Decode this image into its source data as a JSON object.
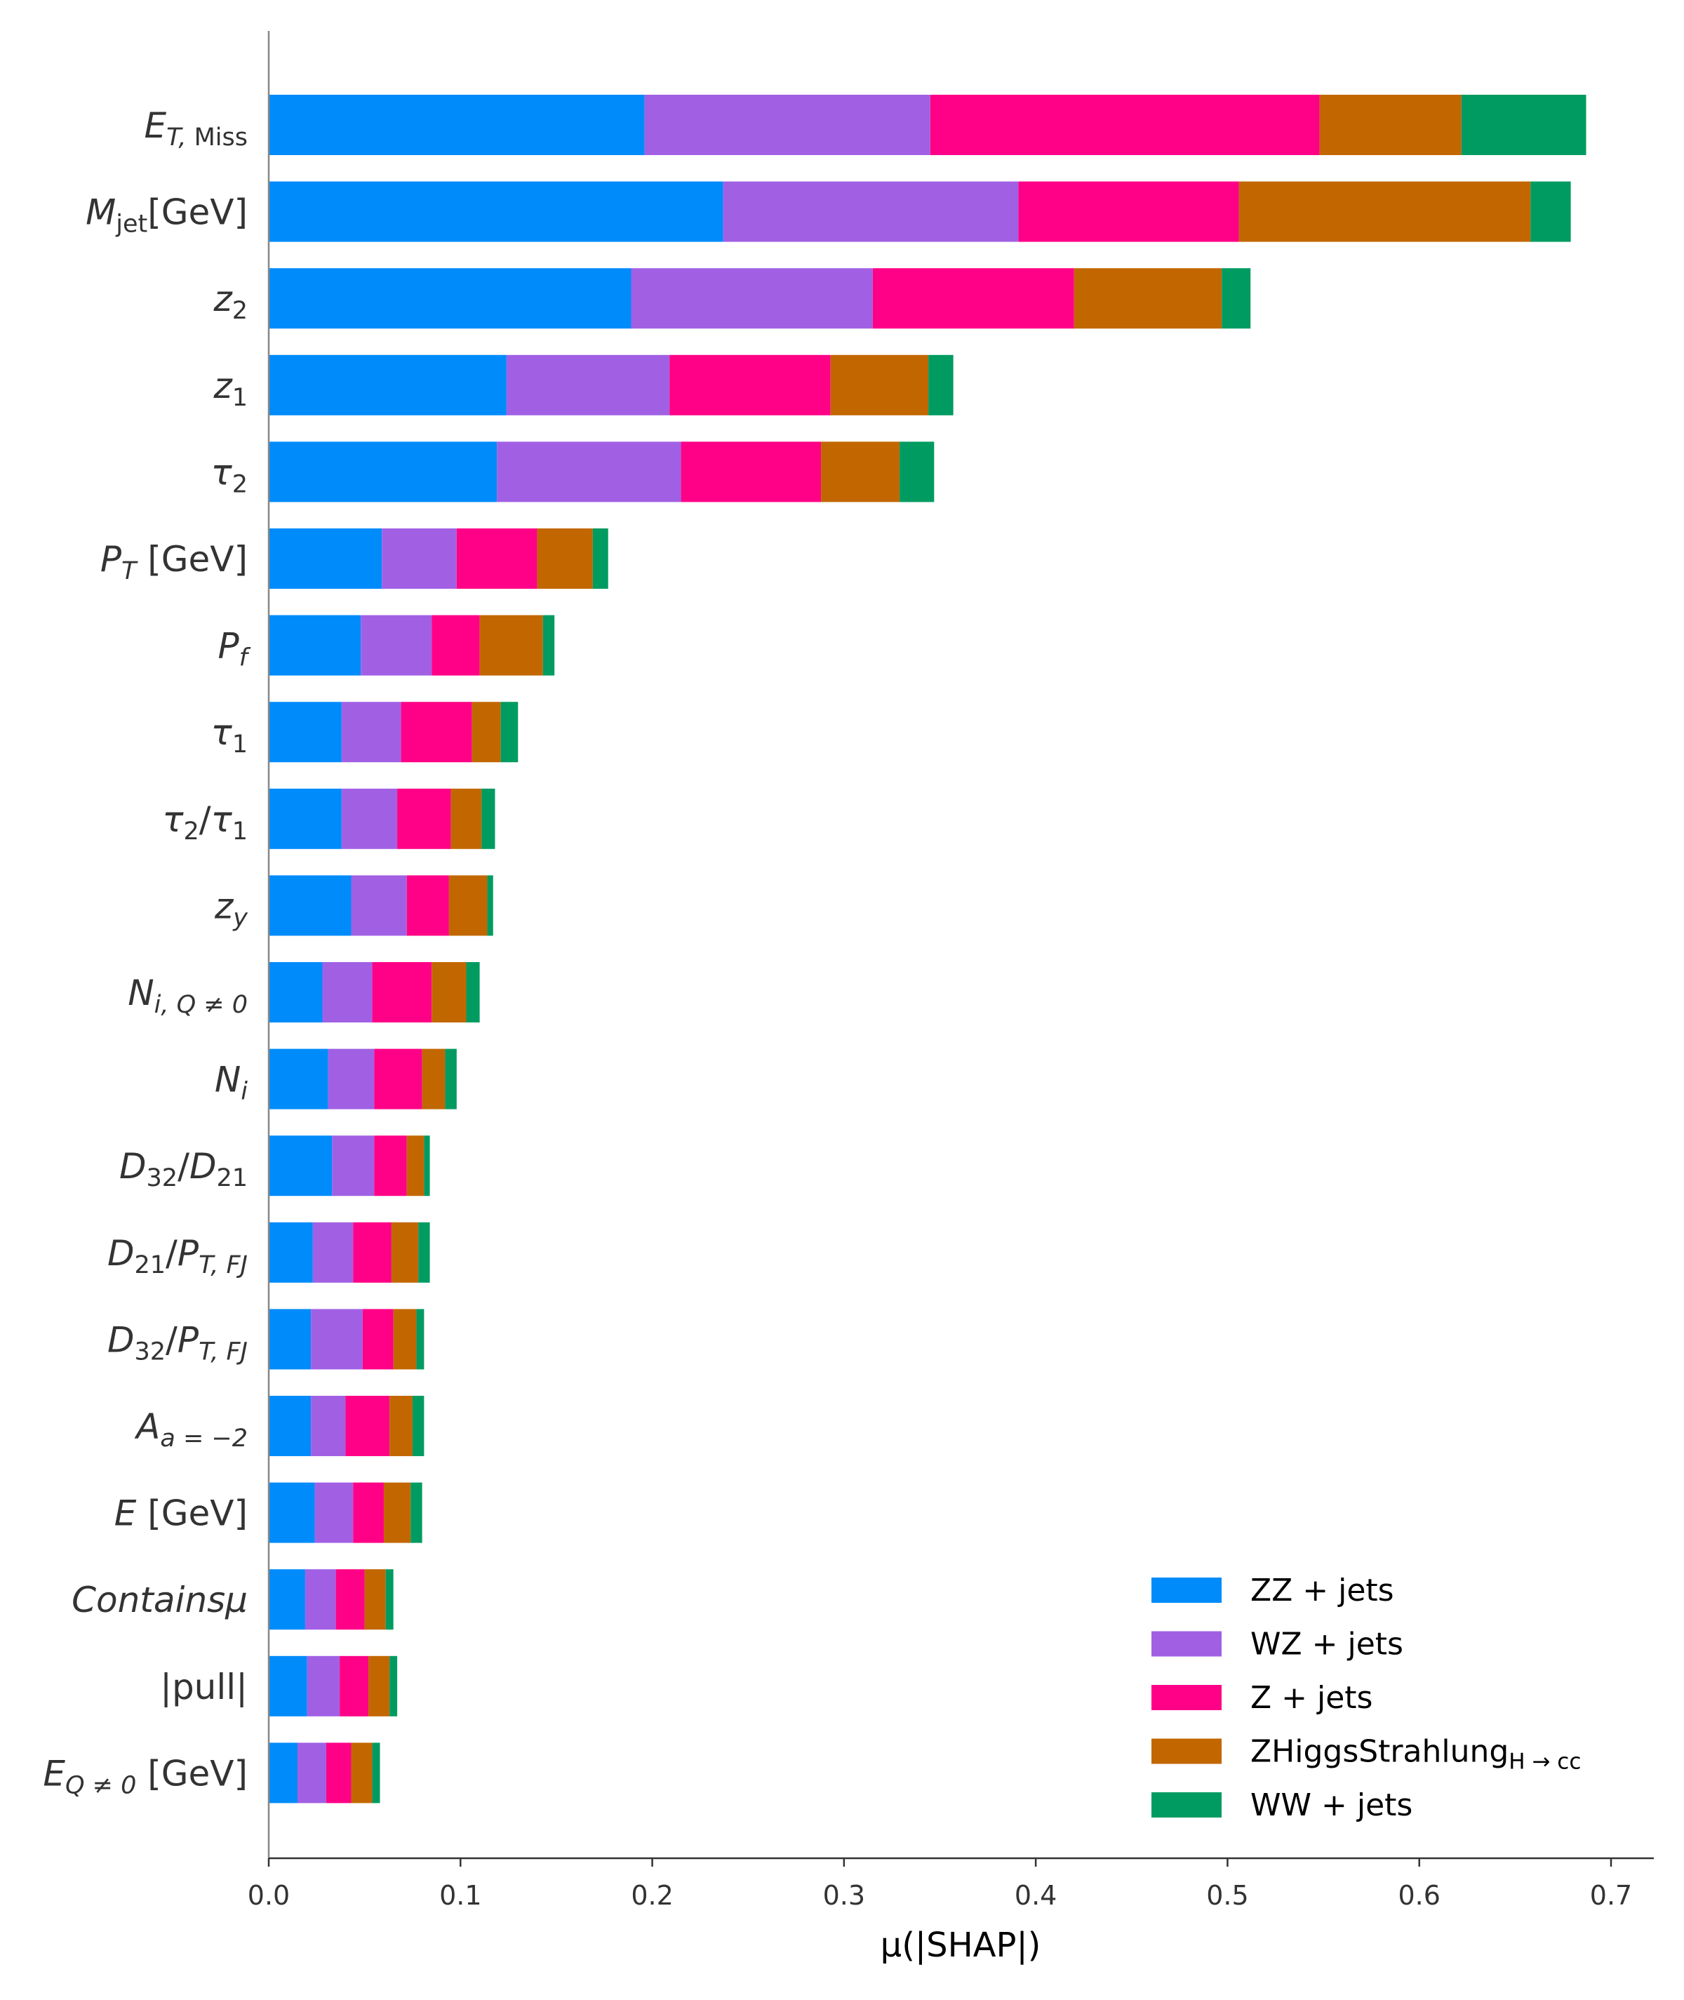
{
  "chart_data": {
    "type": "bar",
    "orientation": "horizontal",
    "stacked": true,
    "xlabel": "μ(|SHAP|)",
    "xlim": [
      0,
      0.72
    ],
    "xticks": [
      "0.0",
      "0.1",
      "0.2",
      "0.3",
      "0.4",
      "0.5",
      "0.6",
      "0.7"
    ],
    "legend_position": "lower-right",
    "grid": false,
    "categories": [
      {
        "key": "et_miss",
        "segments": [
          {
            "t": "E",
            "it": true
          },
          {
            "t": "T, ",
            "it": true,
            "sub": true
          },
          {
            "t": "Miss",
            "sub": true
          }
        ]
      },
      {
        "key": "m_jet",
        "segments": [
          {
            "t": "M",
            "it": true
          },
          {
            "t": "jet",
            "sub": true
          },
          {
            "t": "[GeV]"
          }
        ]
      },
      {
        "key": "z2",
        "segments": [
          {
            "t": "z",
            "it": true
          },
          {
            "t": "2",
            "sub": true
          }
        ]
      },
      {
        "key": "z1",
        "segments": [
          {
            "t": "z",
            "it": true
          },
          {
            "t": "1",
            "sub": true
          }
        ]
      },
      {
        "key": "tau2",
        "segments": [
          {
            "t": "τ",
            "it": true
          },
          {
            "t": "2",
            "sub": true
          }
        ]
      },
      {
        "key": "pt",
        "segments": [
          {
            "t": "P",
            "it": true
          },
          {
            "t": "T",
            "it": true,
            "sub": true
          },
          {
            "t": " [GeV]"
          }
        ]
      },
      {
        "key": "pf",
        "segments": [
          {
            "t": "P",
            "it": true
          },
          {
            "t": "f",
            "it": true,
            "sub": true
          }
        ]
      },
      {
        "key": "tau1",
        "segments": [
          {
            "t": "τ",
            "it": true
          },
          {
            "t": "1",
            "sub": true
          }
        ]
      },
      {
        "key": "tau21",
        "segments": [
          {
            "t": "τ",
            "it": true
          },
          {
            "t": "2",
            "sub": true
          },
          {
            "t": "/"
          },
          {
            "t": "τ",
            "it": true
          },
          {
            "t": "1",
            "sub": true
          }
        ]
      },
      {
        "key": "zy",
        "segments": [
          {
            "t": "z",
            "it": true
          },
          {
            "t": "y",
            "it": true,
            "sub": true
          }
        ]
      },
      {
        "key": "n_iq",
        "segments": [
          {
            "t": "N",
            "it": true
          },
          {
            "t": "i, Q ≠ 0",
            "it": true,
            "sub": true
          }
        ]
      },
      {
        "key": "n_i",
        "segments": [
          {
            "t": "N",
            "it": true
          },
          {
            "t": "i",
            "it": true,
            "sub": true
          }
        ]
      },
      {
        "key": "d32_d21",
        "segments": [
          {
            "t": "D",
            "it": true
          },
          {
            "t": "32",
            "sub": true
          },
          {
            "t": "/"
          },
          {
            "t": "D",
            "it": true
          },
          {
            "t": "21",
            "sub": true
          }
        ]
      },
      {
        "key": "d21_ptfj",
        "segments": [
          {
            "t": "D",
            "it": true
          },
          {
            "t": "21",
            "sub": true
          },
          {
            "t": "/"
          },
          {
            "t": "P",
            "it": true
          },
          {
            "t": "T, FJ",
            "it": true,
            "sub": true
          }
        ]
      },
      {
        "key": "d32_ptfj",
        "segments": [
          {
            "t": "D",
            "it": true
          },
          {
            "t": "32",
            "sub": true
          },
          {
            "t": "/"
          },
          {
            "t": "P",
            "it": true
          },
          {
            "t": "T, FJ",
            "it": true,
            "sub": true
          }
        ]
      },
      {
        "key": "a_m2",
        "segments": [
          {
            "t": "A",
            "it": true
          },
          {
            "t": "a = −2",
            "it": true,
            "sub": true
          }
        ]
      },
      {
        "key": "e",
        "segments": [
          {
            "t": "E",
            "it": true
          },
          {
            "t": " [GeV]"
          }
        ]
      },
      {
        "key": "contains_mu",
        "segments": [
          {
            "t": "Containsμ",
            "it": true
          }
        ]
      },
      {
        "key": "pull",
        "segments": [
          {
            "t": "|pull|"
          }
        ]
      },
      {
        "key": "e_q",
        "segments": [
          {
            "t": "E",
            "it": true
          },
          {
            "t": "Q ≠ 0",
            "it": true,
            "sub": true
          },
          {
            "t": " [GeV]"
          }
        ]
      }
    ],
    "series": [
      {
        "name": "ZZ + jets",
        "color": "#008bfb",
        "values": [
          0.196,
          0.237,
          0.189,
          0.124,
          0.119,
          0.059,
          0.048,
          0.038,
          0.038,
          0.043,
          0.028,
          0.031,
          0.033,
          0.023,
          0.022,
          0.022,
          0.024,
          0.019,
          0.02,
          0.015
        ]
      },
      {
        "name": "WZ + jets",
        "color": "#a160e4",
        "values": [
          0.149,
          0.154,
          0.126,
          0.085,
          0.096,
          0.039,
          0.037,
          0.031,
          0.029,
          0.029,
          0.026,
          0.024,
          0.022,
          0.021,
          0.027,
          0.018,
          0.02,
          0.016,
          0.017,
          0.015
        ]
      },
      {
        "name": "Z + jets",
        "color": "#ff0187",
        "values": [
          0.203,
          0.115,
          0.105,
          0.084,
          0.073,
          0.042,
          0.025,
          0.037,
          0.028,
          0.022,
          0.031,
          0.025,
          0.017,
          0.02,
          0.016,
          0.023,
          0.016,
          0.015,
          0.015,
          0.013
        ]
      },
      {
        "name": "ZHiggsStrahlung",
        "name_sub": "H → cc",
        "color": "#c26700",
        "values": [
          0.074,
          0.152,
          0.077,
          0.051,
          0.041,
          0.029,
          0.033,
          0.015,
          0.016,
          0.02,
          0.018,
          0.012,
          0.009,
          0.014,
          0.012,
          0.012,
          0.014,
          0.011,
          0.011,
          0.011
        ]
      },
      {
        "name": "WW + jets",
        "color": "#009b61",
        "values": [
          0.065,
          0.021,
          0.015,
          0.013,
          0.018,
          0.008,
          0.006,
          0.009,
          0.007,
          0.003,
          0.007,
          0.006,
          0.003,
          0.006,
          0.004,
          0.006,
          0.006,
          0.004,
          0.004,
          0.004
        ]
      }
    ]
  }
}
